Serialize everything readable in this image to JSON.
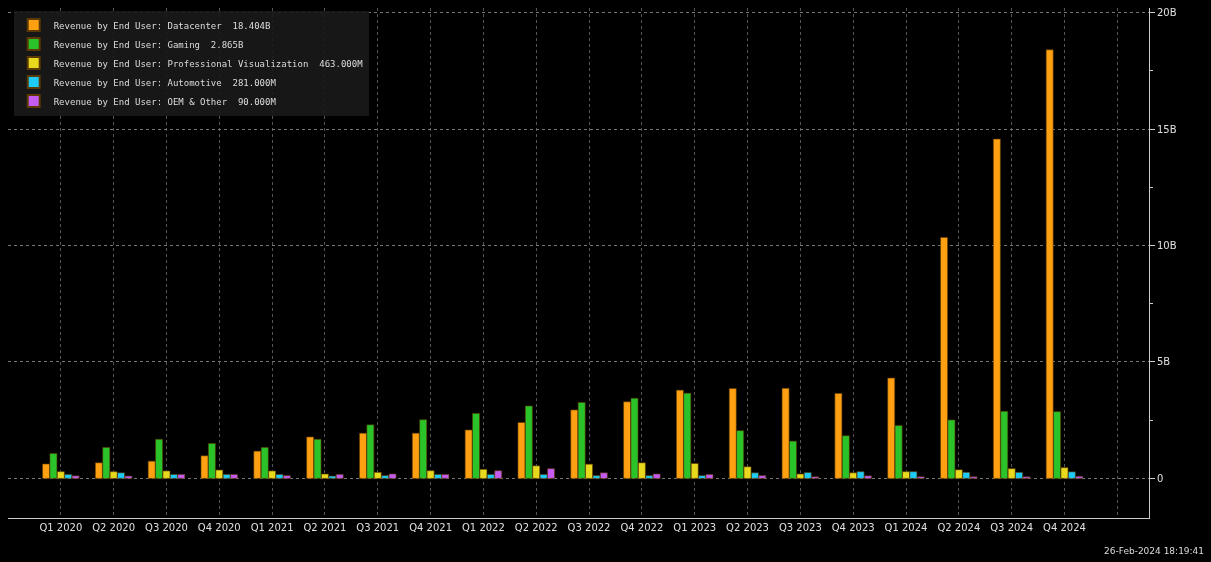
{
  "chart_data": {
    "type": "bar",
    "categories": [
      "Q1 2020",
      "Q2 2020",
      "Q3 2020",
      "Q4 2020",
      "Q1 2021",
      "Q2 2021",
      "Q3 2021",
      "Q4 2021",
      "Q1 2022",
      "Q2 2022",
      "Q3 2022",
      "Q4 2022",
      "Q1 2023",
      "Q2 2023",
      "Q3 2023",
      "Q4 2023",
      "Q1 2024",
      "Q2 2024",
      "Q3 2024",
      "Q4 2024",
      null
    ],
    "series": [
      {
        "name": "Revenue by End User: Datacenter  18.404B",
        "color": "#ff9f12",
        "values": [
          0.62,
          0.67,
          0.74,
          0.97,
          1.17,
          1.78,
          1.94,
          1.94,
          2.08,
          2.4,
          2.94,
          3.29,
          3.79,
          3.86,
          3.87,
          3.65,
          4.31,
          10.35,
          14.57,
          18.404,
          null
        ]
      },
      {
        "name": "Revenue by End User: Gaming  2.865B",
        "color": "#2ac42a",
        "values": [
          1.07,
          1.33,
          1.68,
          1.5,
          1.33,
          1.68,
          2.3,
          2.52,
          2.79,
          3.11,
          3.26,
          3.44,
          3.66,
          2.05,
          1.6,
          1.83,
          2.27,
          2.51,
          2.88,
          2.865,
          null
        ]
      },
      {
        "name": "Revenue by End User: Professional Visualization  463.000M",
        "color": "#e8d81e",
        "values": [
          0.29,
          0.29,
          0.32,
          0.36,
          0.32,
          0.19,
          0.26,
          0.33,
          0.39,
          0.54,
          0.61,
          0.67,
          0.64,
          0.5,
          0.19,
          0.24,
          0.29,
          0.37,
          0.42,
          0.463,
          null
        ]
      },
      {
        "name": "Revenue by End User: Automotive  281.000M",
        "color": "#1ecbf5",
        "values": [
          0.17,
          0.24,
          0.17,
          0.17,
          0.17,
          0.1,
          0.12,
          0.17,
          0.17,
          0.17,
          0.12,
          0.12,
          0.12,
          0.24,
          0.25,
          0.29,
          0.29,
          0.26,
          0.26,
          0.281,
          null
        ]
      },
      {
        "name": "Revenue by End User: OEM & Other  90.000M",
        "color": "#c55cf0",
        "values": [
          0.11,
          0.1,
          0.17,
          0.17,
          0.12,
          0.17,
          0.19,
          0.17,
          0.33,
          0.42,
          0.24,
          0.19,
          0.17,
          0.12,
          0.07,
          0.11,
          0.07,
          0.07,
          0.07,
          0.09,
          null
        ]
      }
    ],
    "ylim": [
      -1.7,
      20.2
    ],
    "yticks": [
      {
        "value": 0,
        "label": "0"
      },
      {
        "value": 2.5,
        "label": null
      },
      {
        "value": 5,
        "label": "5B"
      },
      {
        "value": 7.5,
        "label": null
      },
      {
        "value": 10,
        "label": "10B"
      },
      {
        "value": 12.5,
        "label": null
      },
      {
        "value": 15,
        "label": "15B"
      },
      {
        "value": 17.5,
        "label": null
      },
      {
        "value": 20,
        "label": "20B"
      }
    ],
    "grid": true,
    "legend": "top left",
    "annotations": [
      "26-Feb-2024 18:19:41"
    ]
  }
}
